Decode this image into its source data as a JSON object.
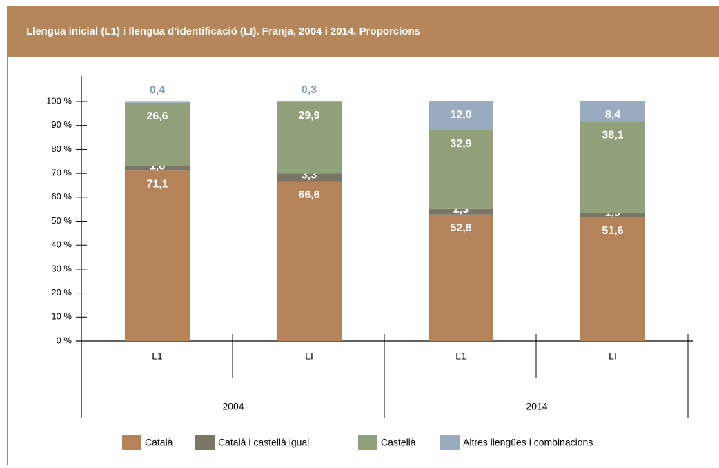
{
  "chart_data": {
    "type": "stacked_bar",
    "title": "Llengua inicial (L1) i llengua d’identificació (LI). Franja, 2004 i 2014. Proporcions",
    "categories": [
      "L1",
      "LI",
      "L1",
      "LI"
    ],
    "groups": [
      "2004",
      "2014"
    ],
    "series": [
      {
        "name": "Català",
        "color": "#b5835a",
        "values": [
          71.1,
          66.6,
          52.8,
          51.6
        ],
        "value_labels": [
          "71,1",
          "66,6",
          "52,8",
          "51,6"
        ]
      },
      {
        "name": "Català i castellà igual",
        "color": "#7b7566",
        "values": [
          1.8,
          3.3,
          2.3,
          1.9
        ],
        "value_labels": [
          "1,8",
          "3,3",
          "2,3",
          "1,9"
        ]
      },
      {
        "name": "Castellà",
        "color": "#8fa07a",
        "values": [
          26.6,
          29.9,
          32.9,
          38.1
        ],
        "value_labels": [
          "26,6",
          "29,9",
          "32,9",
          "38,1"
        ]
      },
      {
        "name": "Altres llengües i combinacions",
        "color": "#9aabbf",
        "values": [
          0.4,
          0.3,
          12.0,
          8.4
        ],
        "value_labels": [
          "0,4",
          "0,3",
          "12,0",
          "8,4"
        ]
      }
    ],
    "ylim": [
      0,
      100
    ],
    "yticks": [
      {
        "value": 0,
        "label": "0 %"
      },
      {
        "value": 10,
        "label": "10 %"
      },
      {
        "value": 20,
        "label": "20 %"
      },
      {
        "value": 30,
        "label": "30 %"
      },
      {
        "value": 40,
        "label": "40 %"
      },
      {
        "value": 50,
        "label": "50 %"
      },
      {
        "value": 60,
        "label": "60 %"
      },
      {
        "value": 70,
        "label": "70 %"
      },
      {
        "value": 80,
        "label": "80 %"
      },
      {
        "value": 90,
        "label": "90 %"
      },
      {
        "value": 100,
        "label": "100 %"
      }
    ]
  }
}
